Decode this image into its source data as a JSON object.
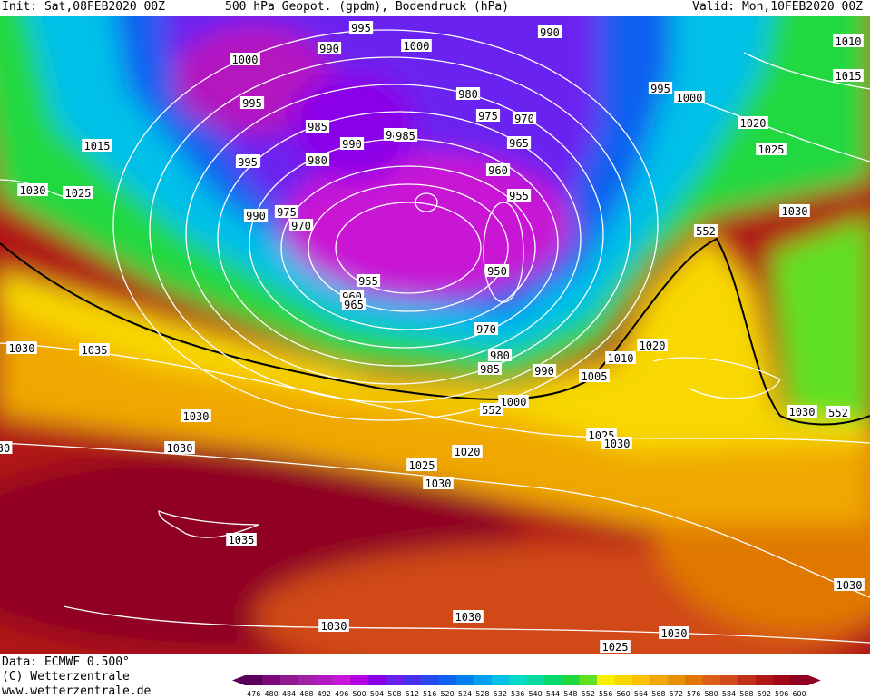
{
  "header": {
    "init": "Init: Sat,08FEB2020 00Z",
    "title": "500 hPa Geopot. (gpdm), Bodendruck (hPa)",
    "valid": "Valid: Mon,10FEB2020 00Z"
  },
  "footer": {
    "data_source": "Data: ECMWF  0.500°",
    "copyright": "(C) Wetterzentrale",
    "url": "www.wetterzentrale.de"
  },
  "legend": {
    "values": [
      "476",
      "480",
      "484",
      "488",
      "492",
      "496",
      "500",
      "504",
      "508",
      "512",
      "516",
      "520",
      "524",
      "528",
      "532",
      "536",
      "540",
      "544",
      "548",
      "552",
      "556",
      "560",
      "564",
      "568",
      "572",
      "576",
      "580",
      "584",
      "588",
      "592",
      "596",
      "600"
    ],
    "colors": [
      "#5a005a",
      "#7a0a7a",
      "#8f1a8f",
      "#a020a8",
      "#b418c0",
      "#c814d4",
      "#b000e0",
      "#8a00e8",
      "#6a20f0",
      "#4830f0",
      "#2848f0",
      "#1060f0",
      "#0080f0",
      "#00a0f0",
      "#00c0e8",
      "#00d8c8",
      "#00d8a0",
      "#00d870",
      "#20d840",
      "#60e020",
      "#f8f000",
      "#f8d800",
      "#f8c000",
      "#f0a800",
      "#e89000",
      "#e07800",
      "#d86018",
      "#d04818",
      "#c03018",
      "#b01818",
      "#a00818",
      "#900020"
    ]
  },
  "pressure_labels": [
    {
      "text": "995"
    },
    {
      "text": "990"
    },
    {
      "text": "1000"
    },
    {
      "text": "990"
    },
    {
      "text": "1000"
    },
    {
      "text": "995"
    },
    {
      "text": "985"
    },
    {
      "text": "995"
    },
    {
      "text": "1010"
    },
    {
      "text": "1015"
    },
    {
      "text": "995"
    },
    {
      "text": "1000"
    },
    {
      "text": "980"
    },
    {
      "text": "975"
    },
    {
      "text": "970"
    },
    {
      "text": "965"
    },
    {
      "text": "985"
    },
    {
      "text": "990"
    },
    {
      "text": "985"
    },
    {
      "text": "980"
    },
    {
      "text": "1015"
    },
    {
      "text": "995"
    },
    {
      "text": "1020"
    },
    {
      "text": "1025"
    },
    {
      "text": "960"
    },
    {
      "text": "955"
    },
    {
      "text": "1030"
    },
    {
      "text": "1025"
    },
    {
      "text": "990"
    },
    {
      "text": "975"
    },
    {
      "text": "970"
    },
    {
      "text": "1030"
    },
    {
      "text": "552"
    },
    {
      "text": "955"
    },
    {
      "text": "950"
    },
    {
      "text": "960"
    },
    {
      "text": "965"
    },
    {
      "text": "970"
    },
    {
      "text": "1030"
    },
    {
      "text": "1035"
    },
    {
      "text": "1010"
    },
    {
      "text": "1020"
    },
    {
      "text": "980"
    },
    {
      "text": "985"
    },
    {
      "text": "990"
    },
    {
      "text": "1005"
    },
    {
      "text": "1000"
    },
    {
      "text": "552"
    },
    {
      "text": "1030"
    },
    {
      "text": "552"
    },
    {
      "text": "1030"
    },
    {
      "text": "1025"
    },
    {
      "text": "1030"
    },
    {
      "text": "1030"
    },
    {
      "text": "1020"
    },
    {
      "text": "1025"
    },
    {
      "text": "1030"
    },
    {
      "text": "1035"
    },
    {
      "text": "1030"
    },
    {
      "text": "1030"
    },
    {
      "text": "1030"
    },
    {
      "text": "1025"
    },
    {
      "text": "1030"
    },
    {
      "text": "30"
    }
  ]
}
